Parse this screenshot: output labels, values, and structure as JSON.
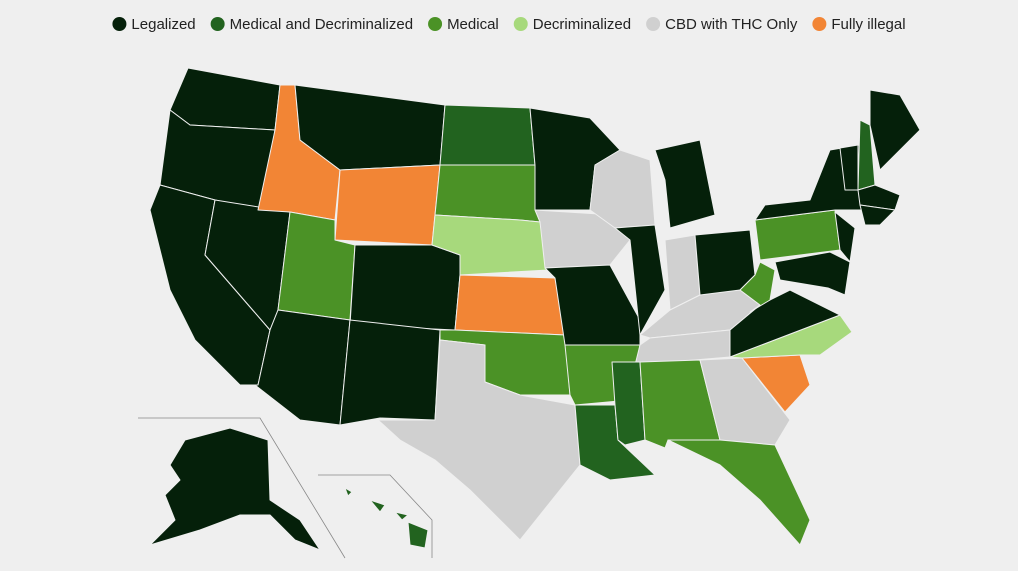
{
  "legend": [
    {
      "label": "Legalized",
      "color": "#05200a"
    },
    {
      "label": "Medical and Decriminalized",
      "color": "#22631f"
    },
    {
      "label": "Medical",
      "color": "#4b9226"
    },
    {
      "label": "Decriminalized",
      "color": "#a7d97c"
    },
    {
      "label": "CBD with THC Only",
      "color": "#d0d0d0"
    },
    {
      "label": "Fully illegal",
      "color": "#f28535"
    }
  ]
}
